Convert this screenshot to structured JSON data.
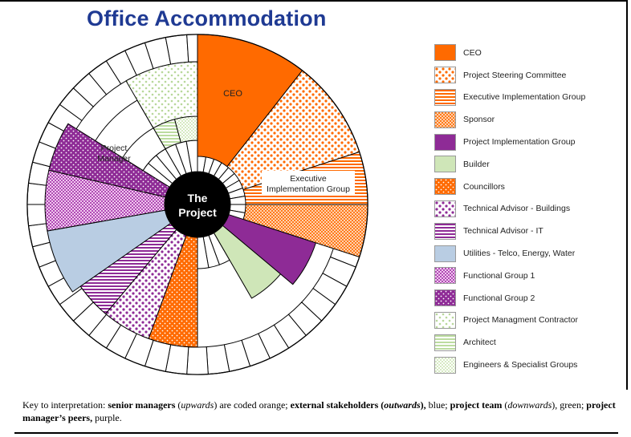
{
  "title": "Office Accommodation",
  "center_label": [
    "The",
    "Project"
  ],
  "segment_labels": {
    "ceo": "CEO",
    "executive": [
      "Executive",
      "Implementation Group"
    ],
    "project_manager": [
      "Project",
      "Manager"
    ]
  },
  "colors": {
    "orange": "#ff6a00",
    "purple": "#8e2b96",
    "green": "#cfe6b8",
    "blue": "#b9cde3",
    "title_blue": "#1f3a93"
  },
  "legend": [
    {
      "label": "CEO",
      "pattern": "solid-orange"
    },
    {
      "label": "Project Steering Committee",
      "pattern": "dots-orange"
    },
    {
      "label": "Executive Implementation Group",
      "pattern": "hlines-orange"
    },
    {
      "label": "Sponsor",
      "pattern": "dense-orange"
    },
    {
      "label": "Project Implementation Group",
      "pattern": "solid-purple"
    },
    {
      "label": "Builder",
      "pattern": "solid-green"
    },
    {
      "label": "Councillors",
      "pattern": "dots-dense-orange"
    },
    {
      "label": "Technical Advisor - Buildings",
      "pattern": "dots-purple"
    },
    {
      "label": "Technical Advisor - IT",
      "pattern": "hlines-purple"
    },
    {
      "label": "Utilities - Telco, Energy, Water",
      "pattern": "solid-blue"
    },
    {
      "label": "Functional Group 1",
      "pattern": "dense-purple"
    },
    {
      "label": "Functional Group 2",
      "pattern": "dots-dark-purple"
    },
    {
      "label": "Project Managment Contractor",
      "pattern": "dots-green"
    },
    {
      "label": "Architect",
      "pattern": "hlines-green"
    },
    {
      "label": "Engineers & Specialist Groups",
      "pattern": "dense-green"
    }
  ],
  "key": {
    "prefix": "Key to interpretation: ",
    "senior_managers": "senior managers",
    "upwards": "upwards",
    "coded_orange": " are coded orange; ",
    "external_stakeholders": "external stakeholders",
    "outwards": "outwards",
    "blue": " blue; ",
    "project_team": "project team",
    "downwards": "downwards",
    "green": " green; ",
    "peers": "project manager’s peers,",
    "purple": " purple."
  }
}
